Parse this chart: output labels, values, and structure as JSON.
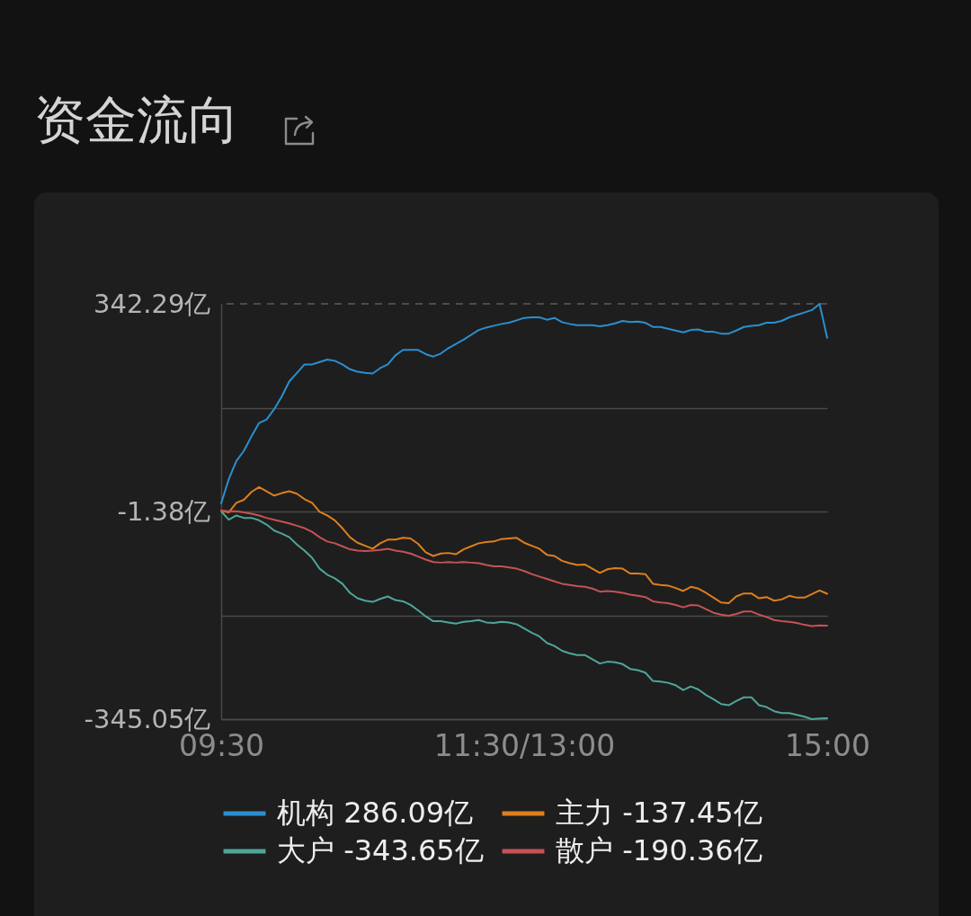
{
  "chart_data": {
    "type": "line",
    "title": "资金流向",
    "categories": [
      "09:30",
      null,
      null,
      null,
      null,
      null,
      null,
      null,
      null,
      null,
      null,
      null,
      null,
      null,
      null,
      null,
      null,
      null,
      null,
      null,
      null,
      null,
      null,
      null,
      null,
      null,
      null,
      null,
      null,
      null,
      null,
      null,
      null,
      null,
      null,
      null,
      null,
      null,
      null,
      null,
      "11:30/13:00",
      null,
      null,
      null,
      null,
      null,
      null,
      null,
      null,
      null,
      null,
      null,
      null,
      null,
      null,
      null,
      null,
      null,
      null,
      null,
      null,
      null,
      null,
      null,
      null,
      null,
      null,
      null,
      null,
      null,
      null,
      null,
      null,
      null,
      null,
      null,
      null,
      null,
      null,
      null,
      "15:00"
    ],
    "ylim": [
      -345.05,
      342.29
    ],
    "yticks": [
      {
        "value": 342.29,
        "label": "342.29亿"
      },
      {
        "value": 170.455,
        "label": null
      },
      {
        "value": -1.38,
        "label": "-1.38亿"
      },
      {
        "value": -173.215,
        "label": null
      },
      {
        "value": -345.05,
        "label": "-345.05亿"
      }
    ],
    "grid": "y",
    "legend": "bottom",
    "ref_lines": [
      {
        "axis": "y",
        "value": 342.29,
        "line_style": "dashed",
        "color": "#5c5c5c"
      }
    ],
    "series": [
      {
        "name": "机构 286.09亿",
        "color": "#2b8fcf",
        "values": [
          12,
          52,
          82,
          99,
          123,
          145,
          151,
          168,
          189,
          214,
          228,
          242,
          242,
          246,
          250,
          248,
          242,
          234,
          230,
          228,
          227,
          236,
          242,
          257,
          266,
          266,
          266,
          259,
          255,
          260,
          269,
          276,
          283,
          291,
          299,
          303,
          306,
          309,
          311,
          315,
          319,
          320,
          320,
          316,
          319,
          312,
          309,
          307,
          307,
          307,
          305,
          307,
          310,
          314,
          312,
          313,
          311,
          304,
          304,
          301,
          298,
          295,
          299,
          300,
          296,
          296,
          293,
          293,
          298,
          304,
          306,
          307,
          311,
          311,
          314,
          320,
          324,
          328,
          332,
          342.29,
          286.09
        ]
      },
      {
        "name": "主力 -137.45亿",
        "color": "#dd7f1e",
        "values": [
          0,
          -3,
          13,
          18,
          31,
          39,
          32,
          25,
          29,
          32,
          28,
          19,
          13,
          -2,
          -8,
          -16,
          -29,
          -44,
          -53,
          -58,
          -63,
          -54,
          -48,
          -48,
          -45,
          -46,
          -55,
          -69,
          -75,
          -71,
          -70,
          -72,
          -64,
          -59,
          -54,
          -52,
          -51,
          -47,
          -46,
          -45,
          -53,
          -58,
          -63,
          -73,
          -75,
          -83,
          -87,
          -90,
          -89,
          -96,
          -103,
          -97,
          -95,
          -96,
          -104,
          -104,
          -105,
          -121,
          -123,
          -124,
          -128,
          -133,
          -126,
          -129,
          -136,
          -144,
          -152,
          -153,
          -142,
          -137,
          -137,
          -145,
          -143,
          -149,
          -147,
          -141,
          -144,
          -144,
          -138,
          -132,
          -137.45
        ]
      },
      {
        "name": "大户 -343.65亿",
        "color": "#4ea699",
        "values": [
          -1,
          -15,
          -8,
          -12,
          -12,
          -16,
          -23,
          -33,
          -38,
          -44,
          -56,
          -66,
          -78,
          -96,
          -106,
          -112,
          -121,
          -136,
          -145,
          -149,
          -151,
          -146,
          -142,
          -148,
          -150,
          -156,
          -165,
          -175,
          -183,
          -183,
          -185,
          -187,
          -184,
          -183,
          -181,
          -185,
          -186,
          -184,
          -185,
          -188,
          -195,
          -202,
          -208,
          -219,
          -224,
          -232,
          -236,
          -239,
          -239,
          -246,
          -253,
          -250,
          -251,
          -254,
          -262,
          -264,
          -268,
          -282,
          -283,
          -285,
          -289,
          -297,
          -291,
          -296,
          -305,
          -312,
          -320,
          -322,
          -315,
          -309,
          -309,
          -322,
          -325,
          -332,
          -335,
          -335,
          -338,
          -341,
          -345,
          -344,
          -343.65
        ]
      },
      {
        "name": "散户 -190.36亿",
        "color": "#c55256",
        "values": [
          0,
          -1,
          -1,
          -3,
          -5,
          -8,
          -12,
          -15,
          -18,
          -21,
          -25,
          -29,
          -35,
          -44,
          -51,
          -54,
          -59,
          -64,
          -66,
          -67,
          -66,
          -65,
          -63,
          -66,
          -68,
          -71,
          -76,
          -81,
          -85,
          -86,
          -85,
          -86,
          -85,
          -86,
          -87,
          -90,
          -92,
          -92,
          -94,
          -96,
          -100,
          -105,
          -109,
          -113,
          -117,
          -121,
          -123,
          -125,
          -126,
          -129,
          -134,
          -133,
          -134,
          -136,
          -139,
          -141,
          -143,
          -150,
          -152,
          -153,
          -156,
          -160,
          -156,
          -157,
          -163,
          -169,
          -172,
          -174,
          -171,
          -167,
          -167,
          -172,
          -176,
          -181,
          -183,
          -184,
          -186,
          -189,
          -191,
          -190,
          -190.36
        ]
      }
    ]
  }
}
